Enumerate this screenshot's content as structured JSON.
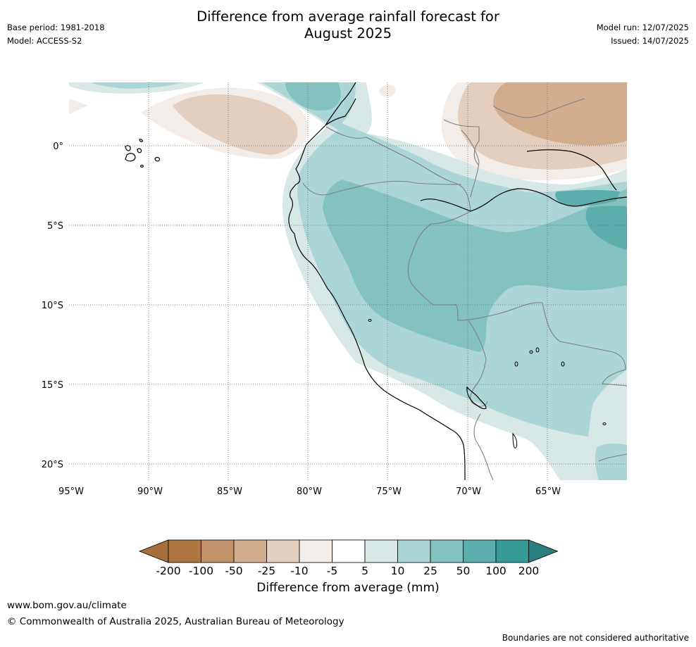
{
  "title": "Difference from average rainfall forecast for August 2025",
  "title_line1": "Difference from average rainfall forecast for",
  "title_line2": "August 2025",
  "meta": {
    "base_period": "Base period: 1981-2018",
    "model": "Model: ACCESS-S2",
    "model_run": "Model run: 12/07/2025",
    "issued": "Issued: 14/07/2025"
  },
  "map": {
    "lon_ticks": [
      "95°W",
      "90°W",
      "85°W",
      "80°W",
      "75°W",
      "70°W",
      "65°W"
    ],
    "lat_ticks": [
      "0°",
      "5°S",
      "10°S",
      "15°S",
      "20°S"
    ]
  },
  "colorbar": {
    "label": "Difference from average (mm)",
    "ticks": [
      "-200",
      "-100",
      "-50",
      "-25",
      "-10",
      "-5",
      "5",
      "10",
      "25",
      "50",
      "100",
      "200"
    ],
    "colors": [
      "#a86f3a",
      "#ad7641",
      "#c0926a",
      "#d1ad8e",
      "#e4cfbe",
      "#f2ede9",
      "#ffffff",
      "#d7e8e7",
      "#acd6d5",
      "#84c2c0",
      "#5caeac",
      "#359a98",
      "#2b7f7e"
    ]
  },
  "footer": {
    "url": "www.bom.gov.au/climate",
    "copyright": "© Commonwealth of Australia 2025, Australian Bureau of Meteorology",
    "disclaimer": "Boundaries are not considered authoritative"
  }
}
